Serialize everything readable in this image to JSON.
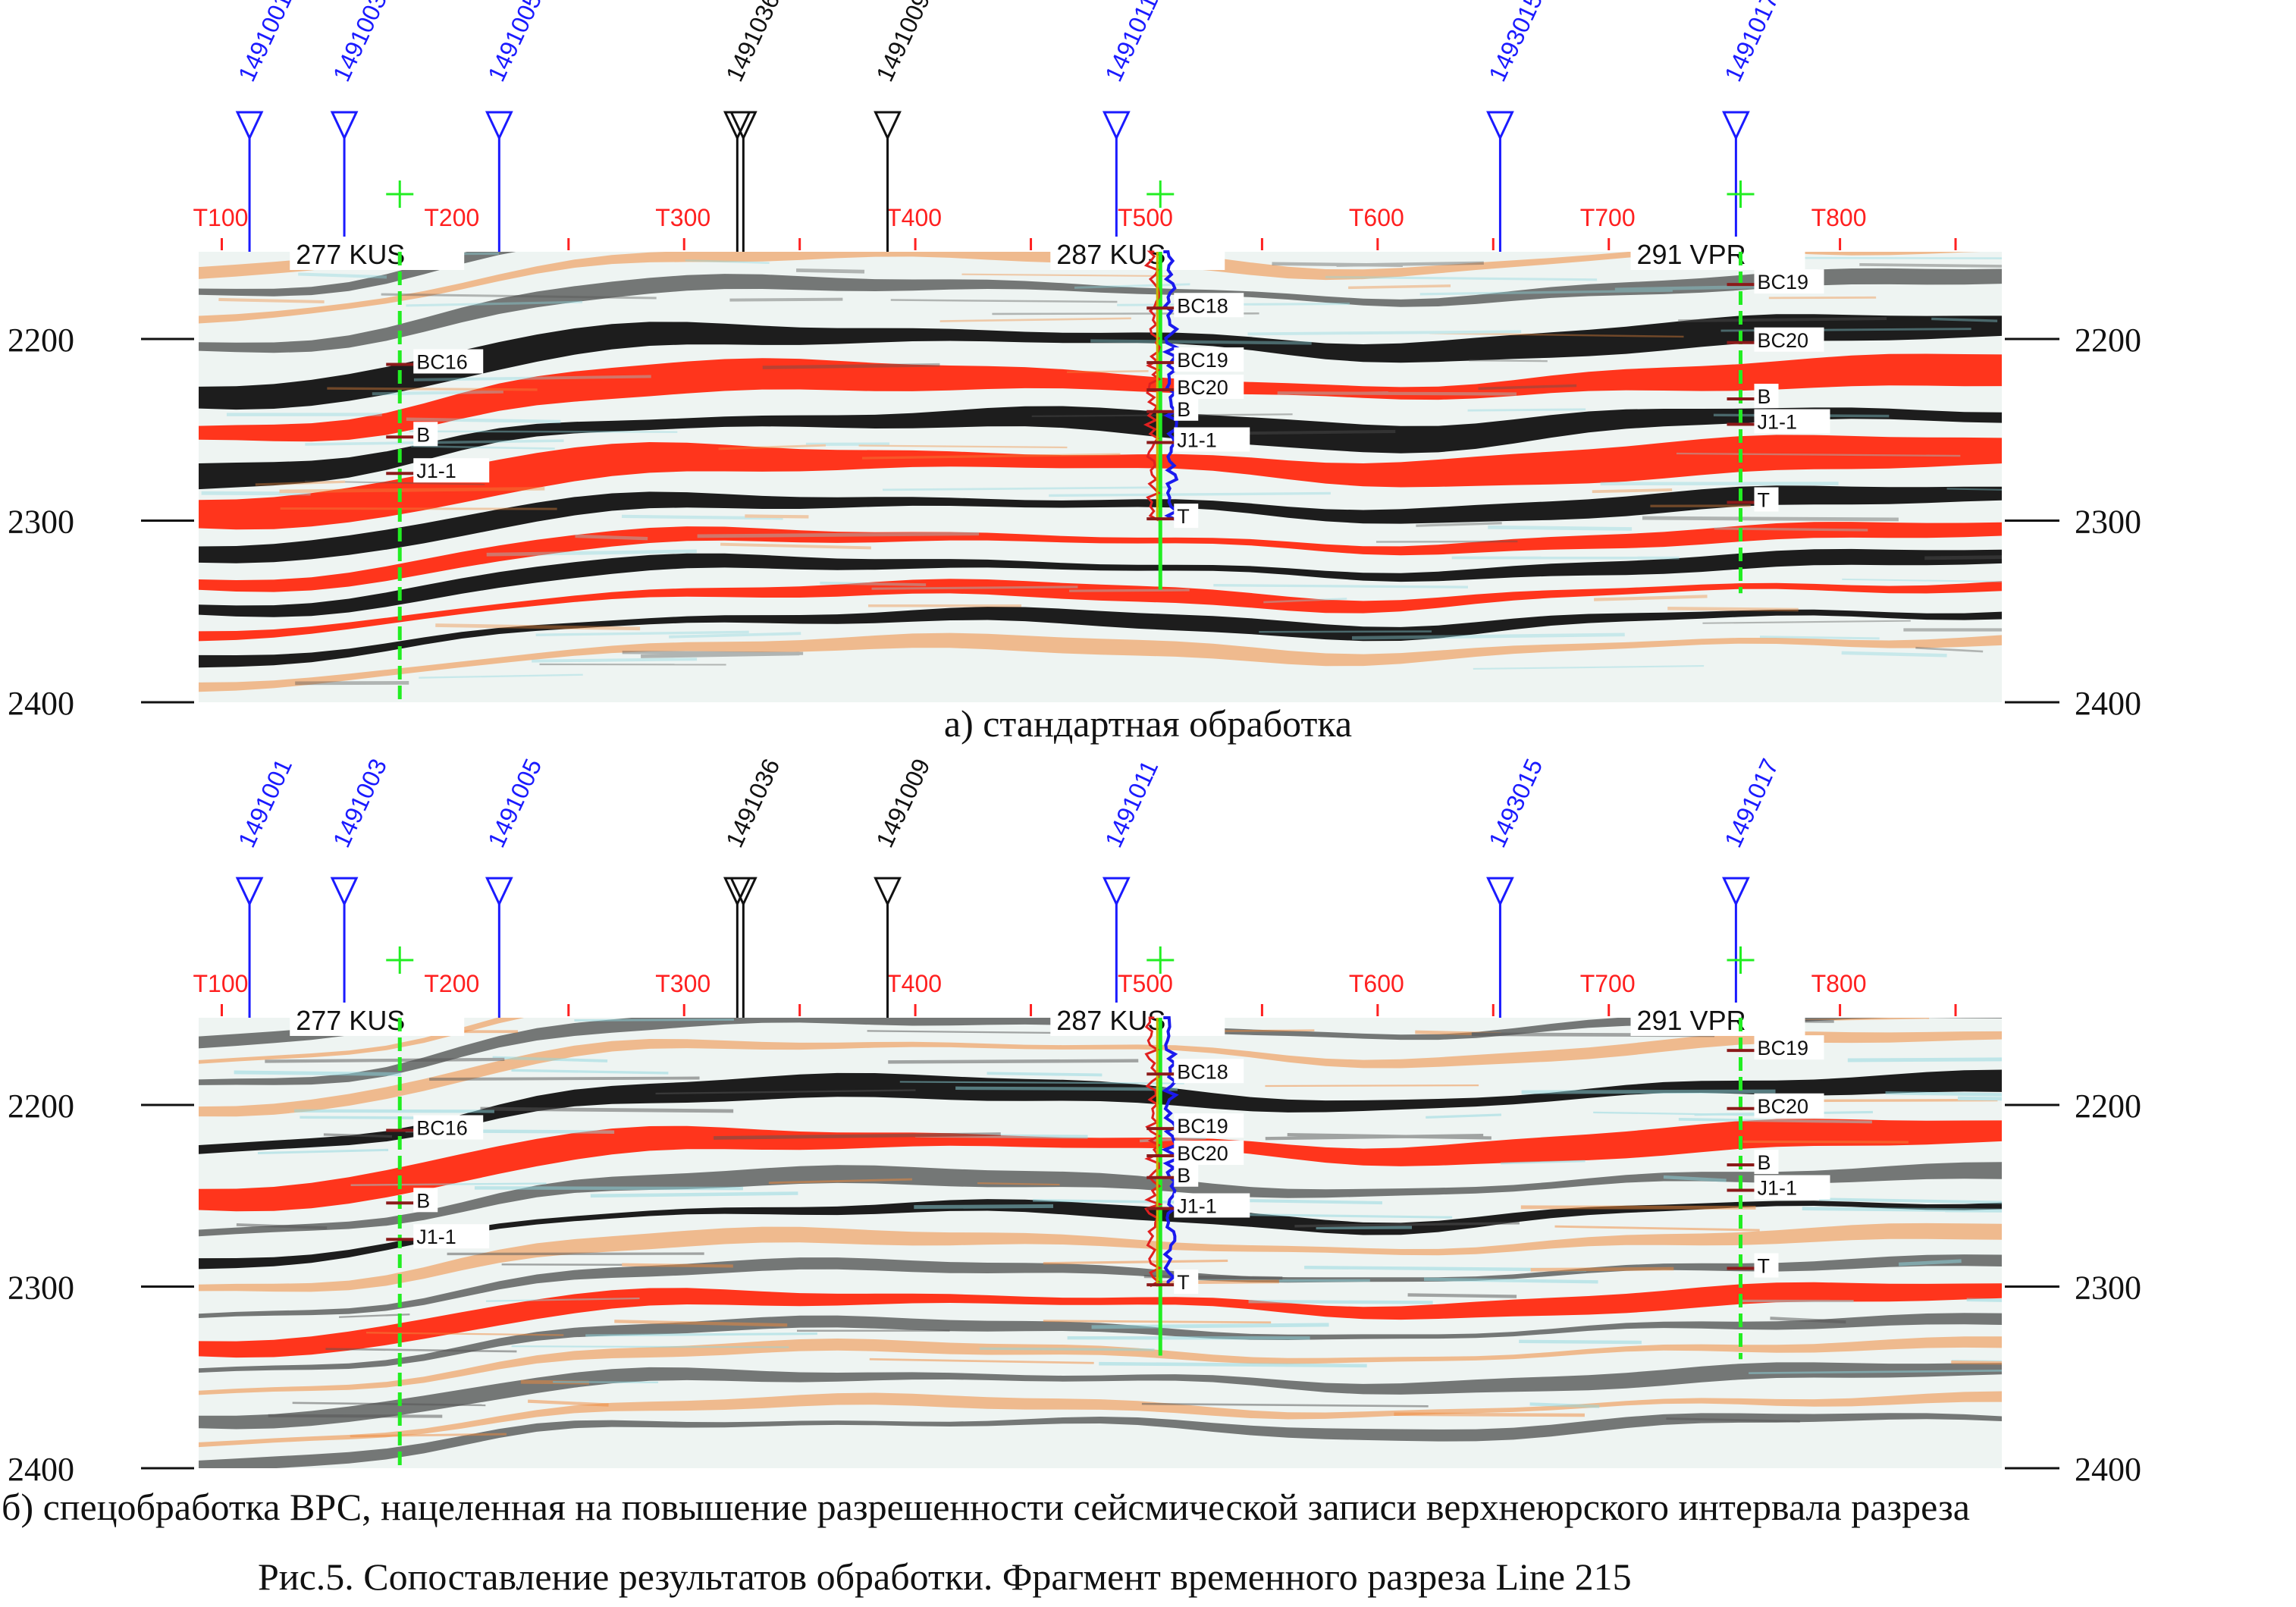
{
  "panels": [
    {
      "id": "a",
      "caption": "а) стандартная обработка",
      "render": "standard"
    },
    {
      "id": "b",
      "caption": "б) спецобработка ВРС, нацеленная на повышение разрешенности сейсмической записи верхнеюрского интервала разреза",
      "render": "enhanced"
    }
  ],
  "figure_caption": "Рис.5. Сопоставление результатов обработки. Фрагмент временного разреза Line 215",
  "depth_axis": {
    "ticks": [
      2200,
      2300,
      2400
    ],
    "min": 2152,
    "max": 2400
  },
  "trace_axis": {
    "labels": [
      "T100",
      "T200",
      "T300",
      "T400",
      "T500",
      "T600",
      "T700",
      "T800"
    ],
    "values": [
      100,
      200,
      300,
      400,
      500,
      600,
      700,
      800
    ],
    "minor_values": [
      150,
      250,
      350,
      450,
      550,
      650,
      750,
      850
    ],
    "range": [
      90,
      870
    ],
    "color": "#ff2020"
  },
  "projected_wells": [
    {
      "label": "1491001",
      "trace": 112,
      "color": "#1a1aff"
    },
    {
      "label": "1491003",
      "trace": 153,
      "color": "#1a1aff"
    },
    {
      "label": "1491005",
      "trace": 220,
      "color": "#1a1aff"
    },
    {
      "label": "1491036",
      "trace": 323,
      "color": "#111111",
      "double": true
    },
    {
      "label": "1491009",
      "trace": 388,
      "color": "#111111"
    },
    {
      "label": "1491011",
      "trace": 487,
      "color": "#1a1aff"
    },
    {
      "label": "1493015",
      "trace": 653,
      "color": "#1a1aff"
    },
    {
      "label": "1491017",
      "trace": 755,
      "color": "#1a1aff"
    }
  ],
  "section_wells": [
    {
      "label": "277 KUS",
      "trace": 177,
      "base_depth": 2400,
      "markers": [
        {
          "name": "BC16",
          "depth": 2214
        },
        {
          "name": "B",
          "depth": 2254
        },
        {
          "name": "J1-1",
          "depth": 2274
        }
      ]
    },
    {
      "label": "287 KUS",
      "trace": 506,
      "base_depth": 2338,
      "log": true,
      "markers": [
        {
          "name": "BC18",
          "depth": 2183
        },
        {
          "name": "BC19",
          "depth": 2213
        },
        {
          "name": "BC20",
          "depth": 2228
        },
        {
          "name": "B",
          "depth": 2240
        },
        {
          "name": "J1-1",
          "depth": 2257
        },
        {
          "name": "T",
          "depth": 2299
        }
      ]
    },
    {
      "label": "291 VPR",
      "trace": 757,
      "base_depth": 2340,
      "markers": [
        {
          "name": "BC19",
          "depth": 2170
        },
        {
          "name": "BC20",
          "depth": 2202
        },
        {
          "name": "B",
          "depth": 2233
        },
        {
          "name": "J1-1",
          "depth": 2247
        },
        {
          "name": "T",
          "depth": 2290
        }
      ]
    }
  ],
  "colors": {
    "positive": "#ff2a10",
    "positive_weak": "#f08a3c",
    "negative": "#111111",
    "noise": "#8fd8e0",
    "well_green": "#22ee22",
    "marker": "#8b1a1a"
  }
}
